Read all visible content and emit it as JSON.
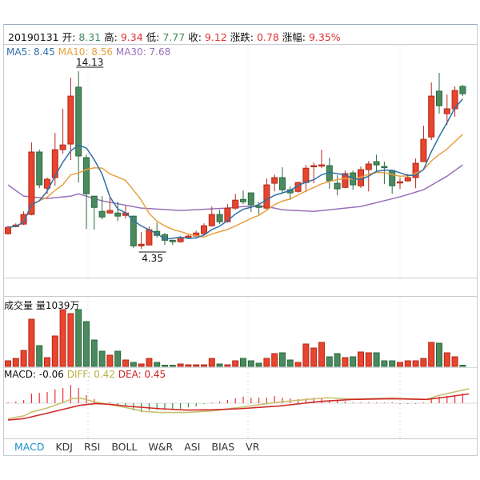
{
  "header": {
    "date": "20190131",
    "open_label": "开:",
    "open": "8.31",
    "high_label": "高:",
    "high": "9.34",
    "low_label": "低:",
    "low": "7.77",
    "close_label": "收:",
    "close": "9.12",
    "change_label": "涨跌:",
    "change": "0.78",
    "pct_label": "涨幅:",
    "pct": "9.35%"
  },
  "ma_legend": {
    "ma5": "MA5: 8.45",
    "ma10": "MA10: 8.56",
    "ma30": "MA30: 7.68"
  },
  "volume_legend": {
    "title": "成交量",
    "value": "量1039万"
  },
  "macd_legend": {
    "macd": "MACD: -0.06",
    "diff": "DIFF: 0.42",
    "dea": "DEA: 0.45"
  },
  "indicator_tabs": [
    "MACD",
    "KDJ",
    "RSI",
    "BOLL",
    "W&R",
    "ASI",
    "BIAS",
    "VR"
  ],
  "active_tab": "MACD",
  "colors": {
    "up": "#e8442e",
    "up_border": "#b02a1a",
    "down": "#4a8a5e",
    "down_border": "#2a6a3e",
    "ma5": "#2f6fa8",
    "ma10": "#e8a040",
    "ma30": "#9a6fb8",
    "diff": "#c8c070",
    "dea": "#d02828"
  },
  "chart_data": {
    "type": "candlestick",
    "price_range": [
      4.35,
      14.13
    ],
    "max_label": "14.13",
    "min_label": "4.35",
    "max_index": 9,
    "min_index": 17,
    "ohlc": [
      [
        5.18,
        5.62,
        5.13,
        5.53
      ],
      [
        5.57,
        5.75,
        5.53,
        5.66
      ],
      [
        5.71,
        6.41,
        5.66,
        6.24
      ],
      [
        6.24,
        10.21,
        6.19,
        9.68
      ],
      [
        9.68,
        9.81,
        7.69,
        7.87
      ],
      [
        7.69,
        8.27,
        7.38,
        8.18
      ],
      [
        8.27,
        10.73,
        7.82,
        9.81
      ],
      [
        9.81,
        12.06,
        9.59,
        10.07
      ],
      [
        10.12,
        13.78,
        9.24,
        12.76
      ],
      [
        13.25,
        14.13,
        8.0,
        9.46
      ],
      [
        9.37,
        9.54,
        5.44,
        7.38
      ],
      [
        7.25,
        7.25,
        5.4,
        6.63
      ],
      [
        6.41,
        7.25,
        5.97,
        6.1
      ],
      [
        6.32,
        7.16,
        6.28,
        6.46
      ],
      [
        6.32,
        6.94,
        5.88,
        6.15
      ],
      [
        6.19,
        6.72,
        6.02,
        6.32
      ],
      [
        6.15,
        6.15,
        4.38,
        4.51
      ],
      [
        4.51,
        5.27,
        4.35,
        4.6
      ],
      [
        4.56,
        5.57,
        4.56,
        5.4
      ],
      [
        5.31,
        5.79,
        4.96,
        5.09
      ],
      [
        5.13,
        5.22,
        4.56,
        4.82
      ],
      [
        4.82,
        4.82,
        4.56,
        4.74
      ],
      [
        4.74,
        5.05,
        4.69,
        4.91
      ],
      [
        4.96,
        5.13,
        4.91,
        5.05
      ],
      [
        5.05,
        5.35,
        4.96,
        5.22
      ],
      [
        5.18,
        5.75,
        5.13,
        5.62
      ],
      [
        5.62,
        6.68,
        5.57,
        6.24
      ],
      [
        6.24,
        6.5,
        5.71,
        5.84
      ],
      [
        5.84,
        6.81,
        5.79,
        6.59
      ],
      [
        6.59,
        7.38,
        6.5,
        7.03
      ],
      [
        7.07,
        7.56,
        6.81,
        6.94
      ],
      [
        7.43,
        7.43,
        6.37,
        6.77
      ],
      [
        6.72,
        6.94,
        6.24,
        6.63
      ],
      [
        6.59,
        8.22,
        6.5,
        7.87
      ],
      [
        7.96,
        8.44,
        7.51,
        8.27
      ],
      [
        8.27,
        8.84,
        7.38,
        7.6
      ],
      [
        7.6,
        7.78,
        7.03,
        7.43
      ],
      [
        7.51,
        8.04,
        7.43,
        8.0
      ],
      [
        8.0,
        8.97,
        7.47,
        8.79
      ],
      [
        8.88,
        9.1,
        7.96,
        8.93
      ],
      [
        8.93,
        9.81,
        8.79,
        8.97
      ],
      [
        8.93,
        9.37,
        7.65,
        8.09
      ],
      [
        7.96,
        8.4,
        7.29,
        7.65
      ],
      [
        7.73,
        8.66,
        7.69,
        8.49
      ],
      [
        8.53,
        8.66,
        7.6,
        7.87
      ],
      [
        7.82,
        8.88,
        7.69,
        8.71
      ],
      [
        8.71,
        9.19,
        7.51,
        9.02
      ],
      [
        9.15,
        9.54,
        8.57,
        8.97
      ],
      [
        8.88,
        9.15,
        7.91,
        8.84
      ],
      [
        8.66,
        8.71,
        7.38,
        7.82
      ],
      [
        8.0,
        8.27,
        7.65,
        8.04
      ],
      [
        8.09,
        8.49,
        8.04,
        8.27
      ],
      [
        8.27,
        9.32,
        7.69,
        9.06
      ],
      [
        9.15,
        11.13,
        9.15,
        10.38
      ],
      [
        10.51,
        13.51,
        10.34,
        12.76
      ],
      [
        13.03,
        14.04,
        11.79,
        12.23
      ],
      [
        11.79,
        12.85,
        11.18,
        12.06
      ],
      [
        12.06,
        13.29,
        11.62,
        13.07
      ],
      [
        13.29,
        13.38,
        12.76,
        12.89
      ]
    ],
    "ma30": [
      [
        0,
        7.87
      ],
      [
        2,
        7.25
      ],
      [
        5,
        7.12
      ],
      [
        8,
        7.25
      ],
      [
        9,
        7.38
      ],
      [
        12,
        6.99
      ],
      [
        17,
        6.59
      ],
      [
        22,
        6.46
      ],
      [
        28,
        6.59
      ],
      [
        30,
        6.68
      ],
      [
        33,
        6.68
      ],
      [
        35,
        6.5
      ],
      [
        39,
        6.41
      ],
      [
        45,
        6.68
      ],
      [
        50,
        7.21
      ],
      [
        53,
        7.6
      ],
      [
        56,
        8.35
      ],
      [
        58,
        8.97
      ]
    ],
    "volume": [
      7,
      10,
      20,
      59,
      26,
      11,
      38,
      71,
      66,
      71,
      56,
      33,
      19,
      14,
      19,
      8,
      5,
      3,
      10,
      5,
      1,
      1,
      3,
      2,
      2,
      2,
      10,
      3,
      2,
      7,
      10,
      7,
      4,
      10,
      16,
      17,
      8,
      5,
      28,
      23,
      30,
      12,
      16,
      11,
      12,
      18,
      17,
      17,
      7,
      7,
      5,
      7,
      7,
      10,
      30,
      29,
      17,
      12,
      1
    ],
    "volume_range": [
      0,
      80
    ],
    "macd_hist": [
      0.02,
      0.05,
      0.09,
      0.28,
      0.3,
      0.33,
      0.4,
      0.44,
      0.53,
      0.44,
      0.23,
      0.12,
      0.02,
      0,
      -0.07,
      -0.09,
      -0.21,
      -0.26,
      -0.21,
      -0.19,
      -0.19,
      -0.19,
      -0.16,
      -0.12,
      -0.09,
      -0.02,
      0.02,
      0.05,
      0.09,
      0.14,
      0.19,
      0.16,
      0.16,
      0.16,
      0.21,
      0.16,
      0.14,
      0.12,
      0.14,
      0.16,
      0.14,
      0.09,
      0.07,
      0.05,
      0.02,
      0.02,
      0.02,
      0.02,
      0.02,
      0,
      -0.02,
      -0.02,
      -0.02,
      0.02,
      0.14,
      0.19,
      0.21,
      0.23,
      0.28
    ],
    "diff": [
      [
        0,
        -0.45
      ],
      [
        2,
        -0.37
      ],
      [
        3,
        -0.26
      ],
      [
        5,
        -0.14
      ],
      [
        7,
        0.02
      ],
      [
        8.2,
        0.13
      ],
      [
        9.2,
        0.15
      ],
      [
        10.2,
        0.09
      ],
      [
        11.2,
        0.03
      ],
      [
        13.3,
        -0.05
      ],
      [
        15.3,
        -0.14
      ],
      [
        17.3,
        -0.24
      ],
      [
        19.4,
        -0.27
      ],
      [
        22.8,
        -0.27
      ],
      [
        26.2,
        -0.22
      ],
      [
        29.6,
        -0.12
      ],
      [
        34.7,
        0.04
      ],
      [
        40.8,
        0.16
      ],
      [
        43.9,
        0.12
      ],
      [
        49,
        0.15
      ],
      [
        53.4,
        0.11
      ],
      [
        55,
        0.23
      ],
      [
        58.8,
        0.42
      ]
    ],
    "dea": [
      [
        0,
        -0.49
      ],
      [
        2,
        -0.45
      ],
      [
        5,
        -0.29
      ],
      [
        7,
        -0.18
      ],
      [
        9.2,
        -0.06
      ],
      [
        11.2,
        -0.01
      ],
      [
        13.3,
        -0.04
      ],
      [
        15.3,
        -0.09
      ],
      [
        19.4,
        -0.16
      ],
      [
        22.8,
        -0.2
      ],
      [
        26.2,
        -0.19
      ],
      [
        29.6,
        -0.16
      ],
      [
        34.7,
        -0.08
      ],
      [
        39.8,
        0.05
      ],
      [
        43.9,
        0.11
      ],
      [
        49,
        0.13
      ],
      [
        53.4,
        0.11
      ],
      [
        55.3,
        0.16
      ],
      [
        58.8,
        0.27
      ]
    ]
  }
}
